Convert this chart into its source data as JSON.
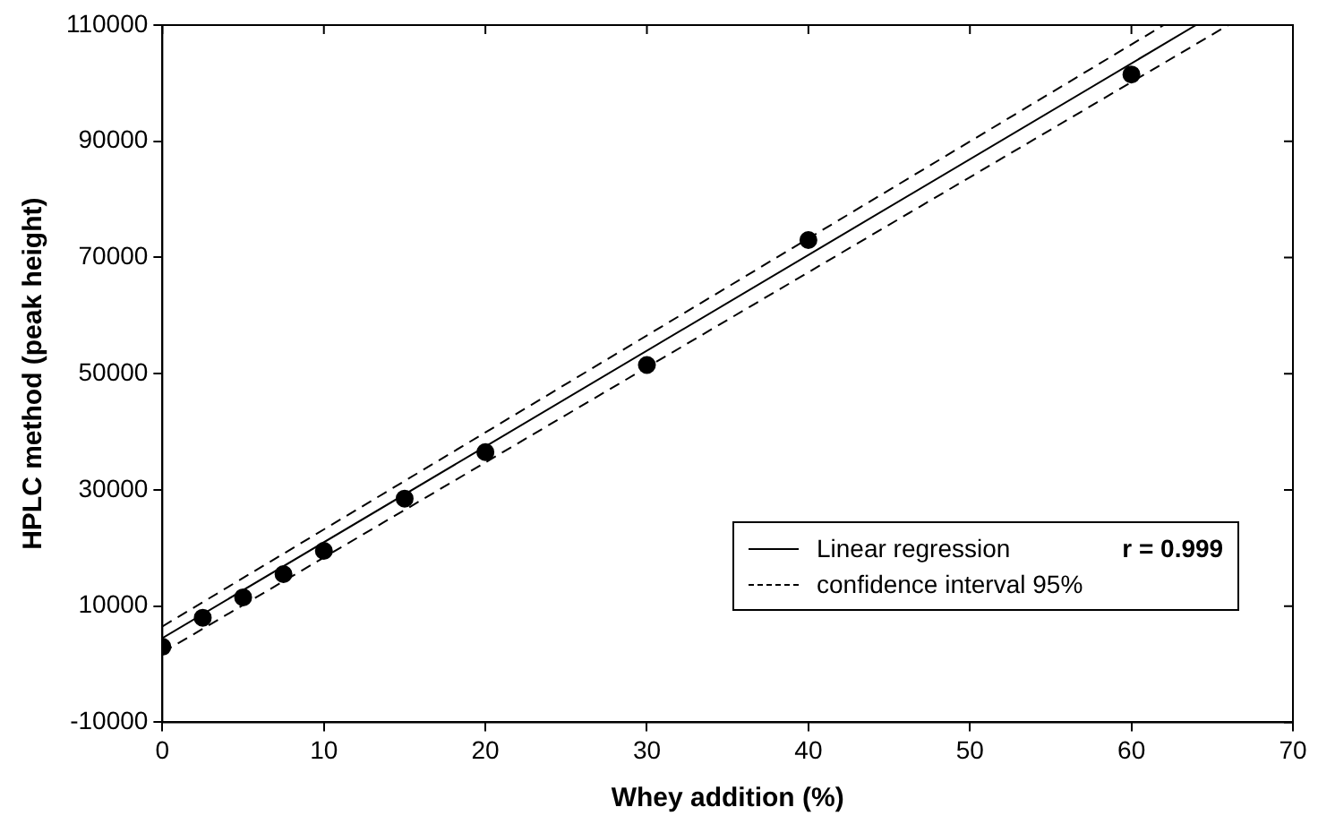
{
  "chart_data": {
    "type": "scatter",
    "xlabel": "Whey addition (%)",
    "ylabel": "HPLC method (peak height)",
    "xlim": [
      0,
      70
    ],
    "xticks": [
      0,
      10,
      20,
      30,
      40,
      50,
      60,
      70
    ],
    "ylim": [
      -10000,
      110000
    ],
    "yticks": [
      -10000,
      10000,
      30000,
      50000,
      70000,
      90000,
      110000
    ],
    "grid": false,
    "legend": "bottom right",
    "annotations": [
      "r = 0.999"
    ],
    "series": [
      {
        "type": "scatter",
        "color": "#000000",
        "marker": "circle",
        "x": [
          0,
          2.5,
          5,
          7.5,
          10,
          15,
          20,
          30,
          40,
          60
        ],
        "values": [
          3000,
          8000,
          11500,
          15500,
          19500,
          28500,
          36500,
          51500,
          73000,
          101500
        ]
      },
      {
        "type": "line",
        "name": "Linear regression",
        "color": "#000000",
        "line_style": "solid",
        "marker": "none",
        "x": [
          0,
          64
        ],
        "values": [
          4500,
          110000
        ]
      },
      {
        "type": "line",
        "name": "confidence interval 95%",
        "color": "#000000",
        "line_style": "dashed",
        "marker": "none",
        "x": [
          0,
          62
        ],
        "values": [
          6500,
          110000
        ]
      },
      {
        "type": "line",
        "color": "#000000",
        "line_style": "dashed",
        "marker": "none",
        "x": [
          0,
          66
        ],
        "values": [
          2000,
          110000
        ]
      }
    ]
  }
}
